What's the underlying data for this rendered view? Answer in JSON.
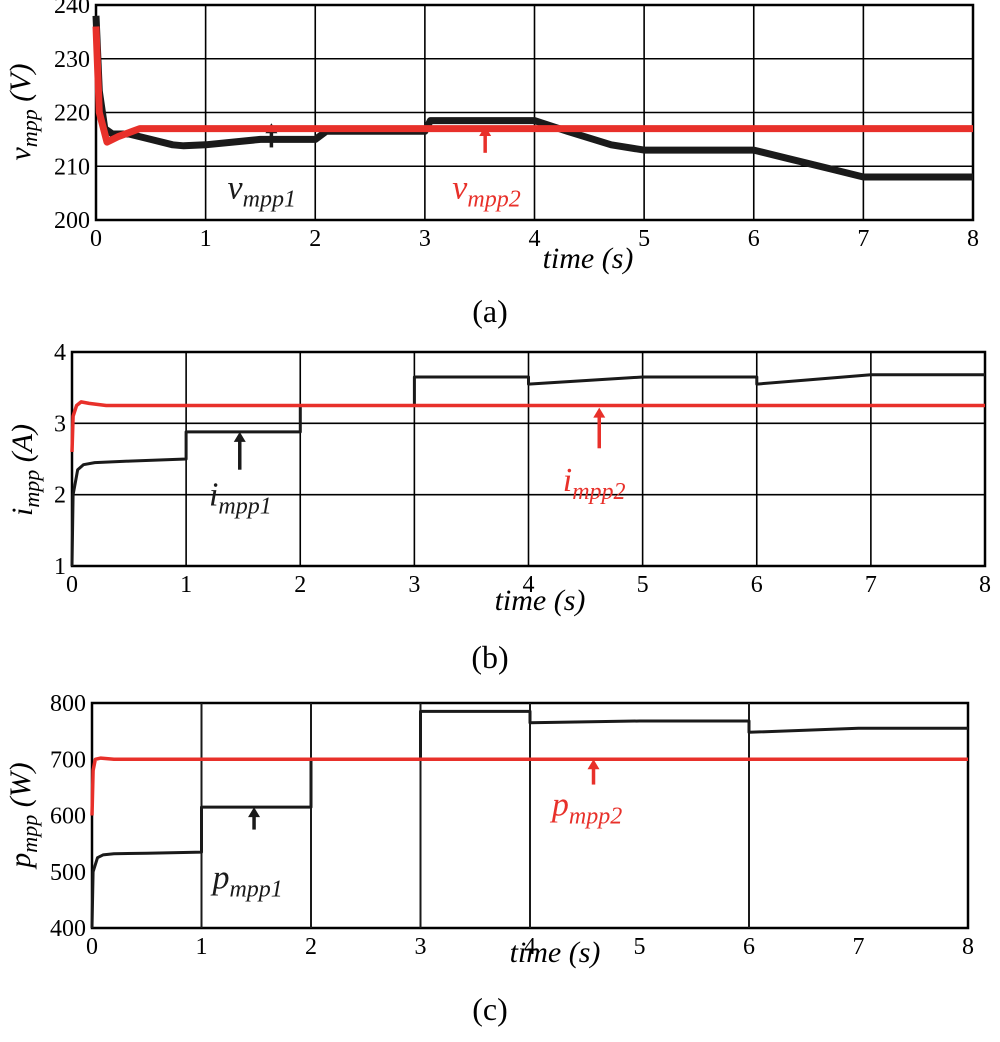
{
  "colors": {
    "series1": "#1a1a1a",
    "series2": "#e8302a",
    "axis": "#000000"
  },
  "chart_data": [
    {
      "type": "line",
      "caption": "(a)",
      "xlabel": "time (s)",
      "ylabel_main": "v",
      "ylabel_sub": "mpp",
      "ylabel_unit": " (V)",
      "xlim": [
        0,
        8
      ],
      "ylim": [
        200,
        240
      ],
      "xticks": [
        0,
        1,
        2,
        3,
        4,
        5,
        6,
        7,
        8
      ],
      "yticks": [
        200,
        210,
        220,
        230,
        240
      ],
      "grid": true,
      "series": [
        {
          "name": "vmpp1",
          "label_main": "v",
          "label_sub": "mpp1",
          "label_at": [
            1.2,
            204
          ],
          "arrow": [
            1.6,
            213.5,
            1.6,
            218
          ],
          "stroke": 7,
          "x": [
            0,
            0.03,
            0.08,
            0.15,
            0.3,
            0.5,
            0.7,
            0.8,
            1.0,
            1.5,
            2.0,
            2.1,
            2.5,
            3.0,
            3.05,
            3.5,
            4.0,
            4.3,
            4.7,
            5.0,
            5.5,
            6.0,
            6.3,
            6.7,
            7.0,
            7.5,
            8.0
          ],
          "y": [
            238,
            224,
            217,
            216,
            216,
            215,
            214,
            213.8,
            214,
            215,
            215,
            216.5,
            216.5,
            216.5,
            218.5,
            218.5,
            218.5,
            216.5,
            214,
            213,
            213,
            213,
            211.5,
            209.5,
            208,
            208,
            208
          ]
        },
        {
          "name": "vmpp2",
          "label_main": "v",
          "label_sub": "mpp2",
          "label_at": [
            3.25,
            204
          ],
          "arrow": [
            3.55,
            212.5,
            3.55,
            217.5
          ],
          "stroke": 7,
          "x": [
            0,
            0.03,
            0.1,
            0.2,
            0.4,
            1.0,
            2.0,
            3.0,
            4.0,
            5.0,
            6.0,
            7.0,
            8.0
          ],
          "y": [
            236,
            220,
            214.5,
            215.5,
            217,
            217,
            217,
            217,
            217,
            217,
            217,
            217,
            217
          ]
        }
      ]
    },
    {
      "type": "line",
      "caption": "(b)",
      "xlabel": "time (s)",
      "ylabel_main": "i",
      "ylabel_sub": "mpp",
      "ylabel_unit": " (A)",
      "xlim": [
        0,
        8
      ],
      "ylim": [
        1,
        4
      ],
      "xticks": [
        0,
        1,
        2,
        3,
        4,
        5,
        6,
        7,
        8
      ],
      "yticks": [
        1,
        2,
        3,
        4
      ],
      "grid": true,
      "series": [
        {
          "name": "impp1",
          "label_main": "i",
          "label_sub": "mpp1",
          "label_at": [
            1.2,
            1.85
          ],
          "arrow": [
            1.47,
            2.35,
            1.47,
            2.88
          ],
          "stroke": 3,
          "x": [
            0,
            0.01,
            0.05,
            0.1,
            0.2,
            0.5,
            1.0,
            1.0,
            2.0,
            2.0,
            3.0,
            3.0,
            4.0,
            4.0,
            5.0,
            6.0,
            6.0,
            7.0,
            8.0
          ],
          "y": [
            1.0,
            2.0,
            2.35,
            2.42,
            2.45,
            2.47,
            2.5,
            2.88,
            2.88,
            3.25,
            3.25,
            3.65,
            3.65,
            3.55,
            3.65,
            3.65,
            3.55,
            3.68,
            3.68
          ]
        },
        {
          "name": "impp2",
          "label_main": "i",
          "label_sub": "mpp2",
          "label_at": [
            4.3,
            2.05
          ],
          "arrow": [
            4.62,
            2.65,
            4.62,
            3.22
          ],
          "stroke": 3.5,
          "x": [
            0,
            0.01,
            0.04,
            0.08,
            0.15,
            0.3,
            1.0,
            2.0,
            3.0,
            4.0,
            5.0,
            6.0,
            7.0,
            8.0
          ],
          "y": [
            2.6,
            3.1,
            3.25,
            3.3,
            3.28,
            3.25,
            3.25,
            3.25,
            3.25,
            3.25,
            3.25,
            3.25,
            3.25,
            3.25
          ]
        }
      ]
    },
    {
      "type": "line",
      "caption": "(c)",
      "xlabel": "time (s)",
      "ylabel_main": "p",
      "ylabel_sub": "mpp",
      "ylabel_unit": " (W)",
      "xlim": [
        0,
        8
      ],
      "ylim": [
        400,
        800
      ],
      "xticks": [
        0,
        1,
        2,
        3,
        4,
        5,
        6,
        7,
        8
      ],
      "yticks": [
        400,
        500,
        600,
        700,
        800
      ],
      "grid": false,
      "series": [
        {
          "name": "pmpp1",
          "label_main": "p",
          "label_sub": "mpp1",
          "label_at": [
            1.1,
            470
          ],
          "arrow": [
            1.48,
            575,
            1.48,
            615
          ],
          "stroke": 3,
          "x": [
            0,
            0.01,
            0.05,
            0.1,
            0.2,
            0.5,
            1.0,
            1.0,
            2.0,
            2.0,
            3.0,
            3.0,
            4.0,
            4.0,
            5.0,
            6.0,
            6.0,
            7.0,
            8.0
          ],
          "y": [
            400,
            500,
            525,
            530,
            532,
            533,
            535,
            615,
            615,
            700,
            700,
            785,
            785,
            765,
            768,
            768,
            748,
            755,
            755
          ],
          "vlines": [
            1,
            2,
            3,
            4,
            6
          ]
        },
        {
          "name": "pmpp2",
          "label_main": "p",
          "label_sub": "mpp2",
          "label_at": [
            4.2,
            600
          ],
          "arrow": [
            4.58,
            655,
            4.58,
            700
          ],
          "stroke": 3.5,
          "x": [
            0,
            0.01,
            0.03,
            0.08,
            0.2,
            1.0,
            2.0,
            3.0,
            4.0,
            5.0,
            6.0,
            7.0,
            8.0
          ],
          "y": [
            600,
            680,
            700,
            702,
            700,
            700,
            700,
            700,
            700,
            700,
            700,
            700,
            700
          ]
        }
      ]
    }
  ]
}
